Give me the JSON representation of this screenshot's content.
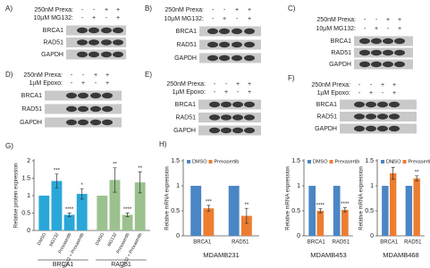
{
  "panels": [
    {
      "label": "A)",
      "treatments": [
        {
          "name": "250nM Prexa:",
          "signs": [
            "-",
            "-",
            "+",
            "+"
          ]
        },
        {
          "name": "10µM MG132:",
          "signs": [
            "-",
            "+",
            "-",
            "+"
          ]
        }
      ],
      "proteins": [
        "BRCA1",
        "RAD51",
        "GAPDH"
      ]
    },
    {
      "label": "B)",
      "treatments": [
        {
          "name": "250nM Prexa:",
          "signs": [
            "-",
            "-",
            "+",
            "+"
          ]
        },
        {
          "name": "10µM MG132:",
          "signs": [
            "-",
            "+",
            "-",
            "+"
          ]
        }
      ],
      "proteins": [
        "BRCA1",
        "RAD51",
        "GAPDH"
      ]
    },
    {
      "label": "C)",
      "treatments": [
        {
          "name": "250nM Prexa:",
          "signs": [
            "-",
            "-",
            "+",
            "+"
          ]
        },
        {
          "name": "10µM MG132:",
          "signs": [
            "-",
            "+",
            "-",
            "+"
          ]
        }
      ],
      "proteins": [
        "BRCA1",
        "RAD51",
        "GAPDH"
      ]
    },
    {
      "label": "D)",
      "treatments": [
        {
          "name": "250nM Prexa:",
          "signs": [
            "-",
            "-",
            "+",
            "+"
          ]
        },
        {
          "name": "1µM Epoxo:",
          "signs": [
            "-",
            "+",
            "-",
            "+"
          ]
        }
      ],
      "proteins": [
        "BRCA1",
        "RAD51",
        "GAPDH"
      ]
    },
    {
      "label": "E)",
      "treatments": [
        {
          "name": "250nM Prexa:",
          "signs": [
            "-",
            "-",
            "+",
            "+"
          ]
        },
        {
          "name": "1µM Epoxo:",
          "signs": [
            "-",
            "+",
            "-",
            "+"
          ]
        }
      ],
      "proteins": [
        "BRCA1",
        "RAD51",
        "GAPDH"
      ]
    },
    {
      "label": "F)",
      "treatments": [
        {
          "name": "250nM Prexa:",
          "signs": [
            "-",
            "-",
            "+",
            "+"
          ]
        },
        {
          "name": "1µM Epoxo:",
          "signs": [
            "-",
            "+",
            "-",
            "+"
          ]
        }
      ],
      "proteins": [
        "BRCA1",
        "RAD51",
        "GAPDH"
      ]
    }
  ],
  "chart_data": [
    {
      "type": "bar",
      "panel_label": "G)",
      "ylabel": "Relative protein expression",
      "categories": [
        "DMSO",
        "MG132",
        "Prexasertib",
        "MG132 + Prexasertib"
      ],
      "series": [
        {
          "name": "BRCA1",
          "color": "#2aa7d9",
          "values": [
            1,
            1.42,
            0.45,
            1.05
          ],
          "errors": [
            null,
            0.2,
            0.05,
            0.15
          ],
          "sig_labels": [
            null,
            "***",
            "****",
            "*"
          ]
        },
        {
          "name": "RAD51",
          "color": "#9bc28e",
          "values": [
            1,
            1.45,
            0.45,
            1.38
          ],
          "errors": [
            null,
            0.35,
            0.05,
            0.3
          ],
          "sig_labels": [
            null,
            "**",
            "****",
            "**"
          ]
        }
      ],
      "ylim": [
        0,
        2
      ],
      "yticks": [
        0,
        0.5,
        1,
        1.5,
        2
      ]
    },
    {
      "type": "bar",
      "panel_label": "H)",
      "ylabel": "Relative  mRNA expression",
      "xlabel": "MDAMB231",
      "categories": [
        "BRCA1",
        "RAD51"
      ],
      "legend": "top",
      "series": [
        {
          "name": "DMSO",
          "color": "#4a86c5",
          "values": [
            1,
            1
          ],
          "errors": [
            null,
            null
          ],
          "sig_labels": [
            null,
            null
          ]
        },
        {
          "name": "Prexasertib",
          "color": "#ed7d31",
          "values": [
            0.55,
            0.4
          ],
          "errors": [
            0.06,
            0.15
          ],
          "sig_labels": [
            "***",
            "**"
          ]
        }
      ],
      "ylim": [
        0,
        1.5
      ],
      "yticks": [
        0,
        0.5,
        1,
        1.5
      ]
    },
    {
      "type": "bar",
      "ylabel": "Relative  mRNA expression",
      "xlabel": "MDAMB453",
      "categories": [
        "BRCA1",
        "RAD51"
      ],
      "legend": "top",
      "series": [
        {
          "name": "DMSO",
          "color": "#4a86c5",
          "values": [
            1,
            1
          ],
          "errors": [
            null,
            null
          ],
          "sig_labels": [
            null,
            null
          ]
        },
        {
          "name": "Prexasertib",
          "color": "#ed7d31",
          "values": [
            0.5,
            0.52
          ],
          "errors": [
            0.04,
            0.04
          ],
          "sig_labels": [
            "****",
            "****"
          ]
        }
      ],
      "ylim": [
        0,
        1.5
      ],
      "yticks": [
        0,
        0.5,
        1,
        1.5
      ]
    },
    {
      "type": "bar",
      "ylabel": "Relative  mRNA expression",
      "xlabel": "MDAMB468",
      "categories": [
        "BRCA1",
        "RAD51"
      ],
      "legend": "top",
      "series": [
        {
          "name": "DMSO",
          "color": "#4a86c5",
          "values": [
            1,
            1
          ],
          "errors": [
            null,
            null
          ],
          "sig_labels": [
            null,
            null
          ]
        },
        {
          "name": "Prexasertib",
          "color": "#ed7d31",
          "values": [
            1.25,
            1.15
          ],
          "errors": [
            0.12,
            0.05
          ],
          "sig_labels": [
            "*",
            "**"
          ]
        }
      ],
      "ylim": [
        0,
        1.5
      ],
      "yticks": [
        0,
        0.5,
        1,
        1.5
      ]
    }
  ]
}
